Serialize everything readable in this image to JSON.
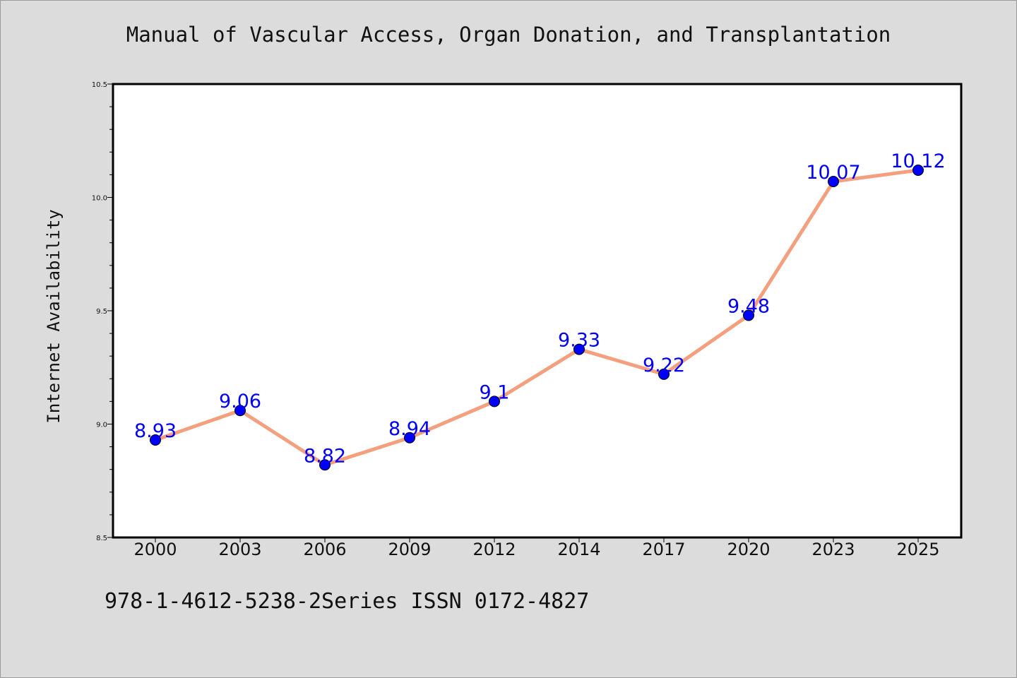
{
  "chart_data": {
    "type": "line",
    "title": "Manual of Vascular Access, Organ Donation, and Transplantation",
    "xlabel": "",
    "ylabel": "Internet Availability",
    "categories": [
      "2000",
      "2003",
      "2006",
      "2009",
      "2012",
      "2014",
      "2017",
      "2020",
      "2023",
      "2025"
    ],
    "series": [
      {
        "values": [
          8.93,
          9.06,
          8.82,
          8.94,
          9.1,
          9.33,
          9.22,
          9.48,
          10.07,
          10.12
        ],
        "labels": [
          "8.93",
          "9.06",
          "8.82",
          "8.94",
          "9.1",
          "9.33",
          "9.22",
          "9.48",
          "10.07",
          "10.12"
        ],
        "line_color": "#f4a07e",
        "marker_color": "#0000ff"
      }
    ],
    "ylim": [
      8.5,
      10.5
    ],
    "yticks": [
      "8.5",
      "9.0",
      "9.5",
      "10.0",
      "10.5"
    ],
    "grid": false,
    "legend": "none"
  },
  "footer": {
    "text": "978-1-4612-5238-2Series ISSN 0172-4827"
  }
}
